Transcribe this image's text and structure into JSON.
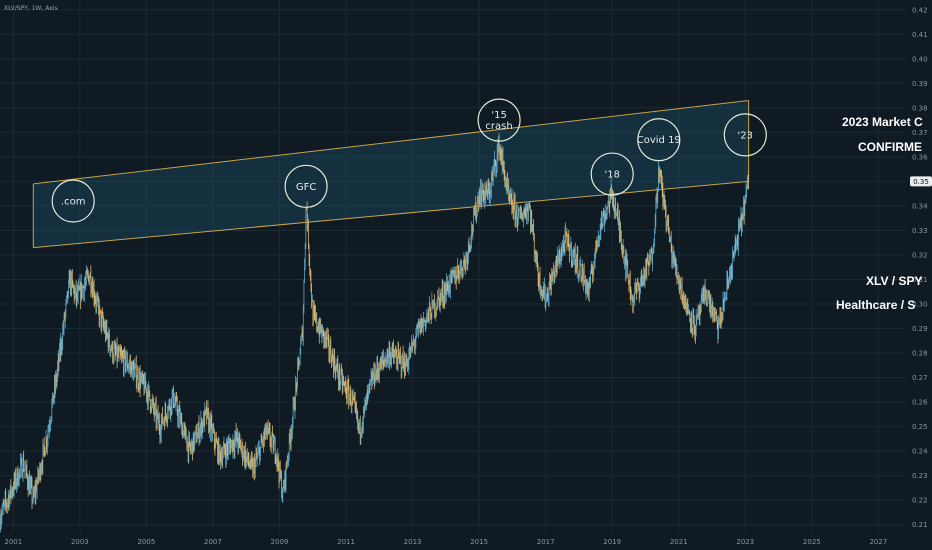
{
  "symbol_label": "XLV/SPY, 1W, Axis",
  "side_text": {
    "line1": "2023 Market C",
    "line2": "CONFIRME",
    "line3": "XLV / SPY",
    "line4": "Healthcare / S"
  },
  "colors": {
    "background": "#0f1a22",
    "candle_up": "#5fa7c7",
    "candle_down": "#d9b46a",
    "channel_line": "#c9a24a",
    "channel_fill": "#1f5a72",
    "circle": "#e6ead6",
    "price_tag": "#e9edf0"
  },
  "chart_data": {
    "type": "candlestick",
    "title": "",
    "xlabel": "",
    "ylabel": "",
    "x_ticks": [
      "2001",
      "2003",
      "2005",
      "2007",
      "2009",
      "2011",
      "2013",
      "2015",
      "2017",
      "2019",
      "2021",
      "2023",
      "2025",
      "2027"
    ],
    "y_ticks": [
      "0.21",
      "0.22",
      "0.23",
      "0.24",
      "0.25",
      "0.26",
      "0.27",
      "0.28",
      "0.29",
      "0.30",
      "0.31",
      "0.32",
      "0.33",
      "0.34",
      "0.35",
      "0.36",
      "0.37",
      "0.38",
      "0.39",
      "0.40",
      "0.41",
      "0.42"
    ],
    "xlim": [
      2000.6,
      2027.8
    ],
    "ylim": [
      0.207,
      0.424
    ],
    "last_price": "0.35",
    "last_price_value": 0.35,
    "grid": true,
    "price_path": [
      [
        2000.6,
        0.213
      ],
      [
        2001.3,
        0.235
      ],
      [
        2001.6,
        0.22
      ],
      [
        2002.0,
        0.245
      ],
      [
        2002.3,
        0.27
      ],
      [
        2002.7,
        0.31
      ],
      [
        2002.9,
        0.302
      ],
      [
        2003.3,
        0.312
      ],
      [
        2003.6,
        0.295
      ],
      [
        2004.0,
        0.28
      ],
      [
        2004.5,
        0.275
      ],
      [
        2005.0,
        0.265
      ],
      [
        2005.4,
        0.25
      ],
      [
        2005.8,
        0.262
      ],
      [
        2006.3,
        0.24
      ],
      [
        2006.8,
        0.255
      ],
      [
        2007.2,
        0.238
      ],
      [
        2007.7,
        0.245
      ],
      [
        2008.2,
        0.232
      ],
      [
        2008.6,
        0.248
      ],
      [
        2008.9,
        0.24
      ],
      [
        2009.1,
        0.222
      ],
      [
        2009.45,
        0.26
      ],
      [
        2009.7,
        0.29
      ],
      [
        2009.8,
        0.342
      ],
      [
        2010.0,
        0.295
      ],
      [
        2010.4,
        0.285
      ],
      [
        2010.8,
        0.27
      ],
      [
        2011.2,
        0.26
      ],
      [
        2011.4,
        0.248
      ],
      [
        2011.8,
        0.27
      ],
      [
        2012.3,
        0.28
      ],
      [
        2012.8,
        0.275
      ],
      [
        2013.2,
        0.29
      ],
      [
        2013.7,
        0.3
      ],
      [
        2014.2,
        0.31
      ],
      [
        2014.6,
        0.318
      ],
      [
        2015.0,
        0.345
      ],
      [
        2015.3,
        0.345
      ],
      [
        2015.6,
        0.365
      ],
      [
        2015.9,
        0.342
      ],
      [
        2016.2,
        0.335
      ],
      [
        2016.5,
        0.34
      ],
      [
        2016.8,
        0.31
      ],
      [
        2017.0,
        0.302
      ],
      [
        2017.3,
        0.315
      ],
      [
        2017.6,
        0.326
      ],
      [
        2018.0,
        0.315
      ],
      [
        2018.3,
        0.305
      ],
      [
        2018.6,
        0.33
      ],
      [
        2019.0,
        0.345
      ],
      [
        2019.3,
        0.325
      ],
      [
        2019.6,
        0.302
      ],
      [
        2019.9,
        0.31
      ],
      [
        2020.2,
        0.32
      ],
      [
        2020.4,
        0.355
      ],
      [
        2020.8,
        0.32
      ],
      [
        2021.2,
        0.3
      ],
      [
        2021.5,
        0.29
      ],
      [
        2021.8,
        0.305
      ],
      [
        2022.2,
        0.29
      ],
      [
        2022.5,
        0.31
      ],
      [
        2022.9,
        0.335
      ],
      [
        2023.1,
        0.35
      ]
    ],
    "series": [
      {
        "values": [
          [
            2001.6,
            0.323
          ],
          [
            2023.1,
            0.35
          ]
        ]
      },
      {
        "values": [
          [
            2001.6,
            0.349
          ],
          [
            2023.1,
            0.383
          ]
        ]
      }
    ],
    "annotations": [
      {
        "label": ".com",
        "x": 2002.8,
        "y": 0.342
      },
      {
        "label": "GFC",
        "x": 2009.8,
        "y": 0.348
      },
      {
        "label": "'15\ncrash",
        "x": 2015.6,
        "y": 0.375
      },
      {
        "label": "'18",
        "x": 2019.0,
        "y": 0.353
      },
      {
        "label": "Covid 19",
        "x": 2020.4,
        "y": 0.367
      },
      {
        "label": "'23",
        "x": 2023.0,
        "y": 0.369
      }
    ]
  }
}
